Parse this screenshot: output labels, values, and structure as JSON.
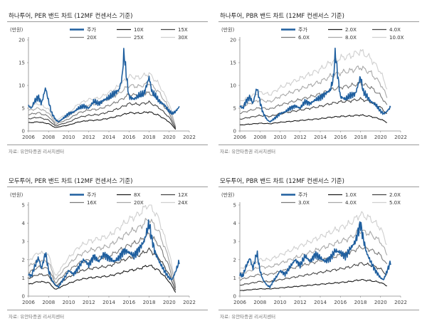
{
  "chart_data": [
    {
      "type": "line",
      "title": "하나투어, PER 밴드 차트 (12MF 컨센서스 기준)",
      "source": "자료: 유안타증권 리서치센터",
      "unit_label": "(만원)",
      "xlim": [
        2006,
        2022
      ],
      "ylim": [
        0,
        20
      ],
      "x_ticks": [
        2006,
        2008,
        2010,
        2012,
        2014,
        2016,
        2018,
        2020,
        2022
      ],
      "y_ticks": [
        0,
        5,
        10,
        15,
        20
      ],
      "price_series": "주가",
      "band_series": [
        "10X",
        "15X",
        "20X",
        "25X",
        "30X"
      ],
      "band_colors": [
        "#1a1a1a",
        "#444444",
        "#7a7a7a",
        "#a8a8a8",
        "#cfcfcf"
      ],
      "price_color": "#1f5f9f",
      "band_x": [
        2006,
        2007,
        2008,
        2008.7,
        2009,
        2010,
        2011,
        2012,
        2013,
        2014,
        2015,
        2016,
        2017,
        2018,
        2019,
        2020,
        2020.7
      ],
      "band_base": [
        1.8,
        2.0,
        1.6,
        0.7,
        0.9,
        1.3,
        2.0,
        2.3,
        2.4,
        2.8,
        3.3,
        4.0,
        3.9,
        4.2,
        3.4,
        2.0,
        0.2
      ],
      "band_multipliers": [
        1,
        1.5,
        2,
        2.5,
        3
      ],
      "price_x": [
        2006,
        2006.3,
        2006.6,
        2007,
        2007.3,
        2007.7,
        2008,
        2008.3,
        2008.7,
        2009,
        2009.3,
        2009.7,
        2010,
        2010.5,
        2011,
        2011.5,
        2012,
        2012.5,
        2013,
        2013.5,
        2014,
        2014.5,
        2015,
        2015.3,
        2015.5,
        2015.7,
        2016,
        2016.5,
        2017,
        2017.5,
        2018,
        2018.3,
        2018.6,
        2019,
        2019.5,
        2020,
        2020.3,
        2020.6,
        2021
      ],
      "price_y": [
        5.5,
        5.0,
        6.5,
        7.5,
        6.0,
        9.5,
        6.5,
        4.0,
        2.5,
        2.0,
        2.5,
        3.2,
        3.8,
        4.2,
        5.0,
        5.5,
        5.0,
        6.5,
        6.0,
        6.8,
        7.3,
        8.2,
        9.0,
        11.5,
        17.3,
        13.0,
        7.5,
        7.0,
        7.8,
        8.2,
        11.8,
        8.5,
        7.8,
        6.5,
        5.8,
        4.3,
        3.8,
        4.2,
        5.3
      ]
    },
    {
      "type": "line",
      "title": "하나투어, PBR 밴드 차트 (12MF 컨센서스 기준)",
      "source": "자료: 유안타증권 리서치센터",
      "unit_label": "(만원)",
      "xlim": [
        2006,
        2022
      ],
      "ylim": [
        0,
        20
      ],
      "x_ticks": [
        2006,
        2008,
        2010,
        2012,
        2014,
        2016,
        2018,
        2020,
        2022
      ],
      "y_ticks": [
        0,
        5,
        10,
        15,
        20
      ],
      "price_series": "주가",
      "band_series": [
        "2.0X",
        "4.0X",
        "6.0X",
        "8.0X",
        "10.0X"
      ],
      "band_colors": [
        "#1a1a1a",
        "#444444",
        "#7a7a7a",
        "#a8a8a8",
        "#cfcfcf"
      ],
      "price_color": "#1f5f9f",
      "band_x": [
        2006,
        2007,
        2008,
        2009,
        2010,
        2011,
        2012,
        2013,
        2014,
        2015,
        2016,
        2017,
        2018,
        2019,
        2020,
        2020.7
      ],
      "band_base": [
        1.3,
        1.5,
        1.7,
        1.6,
        1.9,
        2.1,
        2.3,
        2.5,
        2.7,
        3.0,
        3.2,
        3.3,
        3.5,
        3.2,
        2.6,
        1.8
      ],
      "band_multipliers": [
        1,
        2,
        3,
        4,
        5
      ],
      "price_x": [
        2006,
        2006.3,
        2006.6,
        2007,
        2007.3,
        2007.7,
        2008,
        2008.3,
        2008.7,
        2009,
        2009.3,
        2009.7,
        2010,
        2010.5,
        2011,
        2011.5,
        2012,
        2012.5,
        2013,
        2013.5,
        2014,
        2014.5,
        2015,
        2015.3,
        2015.5,
        2015.7,
        2016,
        2016.5,
        2017,
        2017.5,
        2018,
        2018.3,
        2018.6,
        2019,
        2019.5,
        2020,
        2020.3,
        2020.6,
        2021
      ],
      "price_y": [
        5.5,
        5.0,
        6.5,
        7.5,
        6.0,
        9.5,
        6.5,
        4.0,
        2.5,
        2.0,
        2.5,
        3.2,
        3.8,
        4.2,
        5.0,
        5.5,
        5.0,
        6.5,
        6.0,
        6.8,
        7.3,
        8.2,
        9.0,
        11.5,
        17.3,
        13.0,
        7.5,
        7.0,
        7.8,
        8.2,
        11.8,
        8.5,
        7.8,
        6.5,
        5.8,
        4.3,
        3.8,
        4.2,
        5.3
      ]
    },
    {
      "type": "line",
      "title": "모두투어, PER 밴드 차트 (12MF 컨센서스 기준)",
      "source": "자료: 유안타증권 리서치센터",
      "unit_label": "(만원)",
      "xlim": [
        2006,
        2022
      ],
      "ylim": [
        0,
        5
      ],
      "x_ticks": [
        2006,
        2008,
        2010,
        2012,
        2014,
        2016,
        2018,
        2020,
        2022
      ],
      "y_ticks": [
        0,
        1,
        2,
        3,
        4,
        5
      ],
      "price_series": "주가",
      "band_series": [
        "8X",
        "12X",
        "16X",
        "20X",
        "24X"
      ],
      "band_colors": [
        "#1a1a1a",
        "#444444",
        "#7a7a7a",
        "#a8a8a8",
        "#cfcfcf"
      ],
      "price_color": "#1f5f9f",
      "band_x": [
        2006,
        2007,
        2008,
        2008.7,
        2009,
        2010,
        2011,
        2012,
        2013,
        2014,
        2015,
        2016,
        2017,
        2018,
        2019,
        2020,
        2020.7
      ],
      "band_base": [
        0.65,
        0.8,
        0.75,
        0.35,
        0.45,
        0.7,
        0.9,
        1.0,
        1.05,
        1.1,
        1.25,
        1.4,
        1.5,
        1.7,
        1.4,
        0.8,
        0.15
      ],
      "band_multipliers": [
        1,
        1.5,
        2,
        2.5,
        3
      ],
      "price_x": [
        2006,
        2006.3,
        2006.6,
        2007,
        2007.3,
        2007.7,
        2008,
        2008.3,
        2008.7,
        2009,
        2009.3,
        2009.7,
        2010,
        2010.5,
        2011,
        2011.5,
        2012,
        2012.5,
        2013,
        2013.5,
        2014,
        2014.5,
        2015,
        2015.5,
        2016,
        2016.5,
        2017,
        2017.5,
        2018,
        2018.3,
        2018.6,
        2019,
        2019.5,
        2020,
        2020.3,
        2020.6,
        2021
      ],
      "price_y": [
        1.2,
        1.1,
        1.6,
        2.1,
        1.5,
        2.4,
        1.4,
        0.9,
        0.6,
        0.5,
        0.8,
        1.1,
        1.4,
        1.2,
        1.6,
        2.0,
        1.7,
        2.2,
        1.9,
        2.3,
        2.1,
        1.9,
        2.1,
        2.5,
        2.4,
        2.2,
        2.6,
        3.0,
        4.0,
        3.1,
        2.4,
        1.9,
        1.4,
        1.0,
        0.9,
        1.3,
        1.9
      ]
    },
    {
      "type": "line",
      "title": "모두투어, PBR 밴드 차트 (12MF 컨센서스 기준)",
      "source": "자료: 유안타증권 리서치센터",
      "unit_label": "(만원)",
      "xlim": [
        2006,
        2022
      ],
      "ylim": [
        0,
        5
      ],
      "x_ticks": [
        2006,
        2008,
        2010,
        2012,
        2014,
        2016,
        2018,
        2020,
        2022
      ],
      "y_ticks": [
        0,
        1,
        2,
        3,
        4,
        5
      ],
      "price_series": "주가",
      "band_series": [
        "1.0X",
        "2.0X",
        "3.0X",
        "4.0X",
        "5.0X"
      ],
      "band_colors": [
        "#1a1a1a",
        "#444444",
        "#7a7a7a",
        "#a8a8a8",
        "#cfcfcf"
      ],
      "price_color": "#1f5f9f",
      "band_x": [
        2006,
        2007,
        2008,
        2009,
        2010,
        2011,
        2012,
        2013,
        2014,
        2015,
        2016,
        2017,
        2018,
        2019,
        2020,
        2020.7
      ],
      "band_base": [
        0.3,
        0.35,
        0.4,
        0.4,
        0.45,
        0.5,
        0.55,
        0.6,
        0.65,
        0.7,
        0.75,
        0.8,
        0.9,
        0.85,
        0.75,
        0.55
      ],
      "band_multipliers": [
        1,
        2,
        3,
        4,
        5
      ],
      "price_x": [
        2006,
        2006.3,
        2006.6,
        2007,
        2007.3,
        2007.7,
        2008,
        2008.3,
        2008.7,
        2009,
        2009.3,
        2009.7,
        2010,
        2010.5,
        2011,
        2011.5,
        2012,
        2012.5,
        2013,
        2013.5,
        2014,
        2014.5,
        2015,
        2015.5,
        2016,
        2016.5,
        2017,
        2017.5,
        2018,
        2018.3,
        2018.6,
        2019,
        2019.5,
        2020,
        2020.3,
        2020.6,
        2021
      ],
      "price_y": [
        1.2,
        1.1,
        1.6,
        2.1,
        1.5,
        2.4,
        1.4,
        0.9,
        0.6,
        0.5,
        0.8,
        1.1,
        1.4,
        1.2,
        1.6,
        2.0,
        1.7,
        2.2,
        1.9,
        2.3,
        2.1,
        1.9,
        2.1,
        2.5,
        2.4,
        2.2,
        2.6,
        3.0,
        4.0,
        3.1,
        2.4,
        1.9,
        1.4,
        1.0,
        0.9,
        1.3,
        1.9
      ]
    }
  ]
}
